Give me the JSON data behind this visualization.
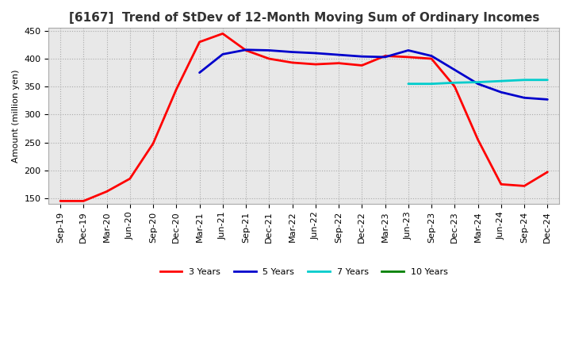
{
  "title": "[6167]  Trend of StDev of 12-Month Moving Sum of Ordinary Incomes",
  "ylabel": "Amount (million yen)",
  "ylim": [
    140,
    455
  ],
  "yticks": [
    150,
    200,
    250,
    300,
    350,
    400,
    450
  ],
  "x_labels": [
    "Sep-19",
    "Dec-19",
    "Mar-20",
    "Jun-20",
    "Sep-20",
    "Dec-20",
    "Mar-21",
    "Jun-21",
    "Sep-21",
    "Dec-21",
    "Mar-22",
    "Jun-22",
    "Sep-22",
    "Dec-22",
    "Mar-23",
    "Jun-23",
    "Sep-23",
    "Dec-23",
    "Mar-24",
    "Jun-24",
    "Sep-24",
    "Dec-24"
  ],
  "series": {
    "3 Years": {
      "color": "#FF0000",
      "data": [
        145,
        145,
        162,
        185,
        248,
        345,
        430,
        445,
        415,
        400,
        393,
        390,
        392,
        388,
        405,
        403,
        400,
        350,
        255,
        175,
        172,
        197
      ]
    },
    "5 Years": {
      "color": "#0000CC",
      "data": [
        null,
        null,
        null,
        null,
        null,
        null,
        375,
        408,
        416,
        415,
        412,
        410,
        407,
        404,
        403,
        415,
        405,
        380,
        355,
        340,
        330,
        327
      ]
    },
    "7 Years": {
      "color": "#00CCCC",
      "data": [
        null,
        null,
        null,
        null,
        null,
        null,
        null,
        null,
        null,
        null,
        null,
        null,
        null,
        null,
        null,
        355,
        355,
        357,
        358,
        360,
        362,
        362
      ]
    },
    "10 Years": {
      "color": "#008000",
      "data": [
        null,
        null,
        null,
        null,
        null,
        null,
        null,
        null,
        null,
        null,
        null,
        null,
        null,
        null,
        null,
        null,
        null,
        null,
        null,
        null,
        null,
        null
      ]
    }
  },
  "plot_bg_color": "#E8E8E8",
  "background_color": "#FFFFFF",
  "grid_color": "#AAAAAA",
  "title_fontsize": 11,
  "axis_fontsize": 8,
  "tick_fontsize": 8
}
